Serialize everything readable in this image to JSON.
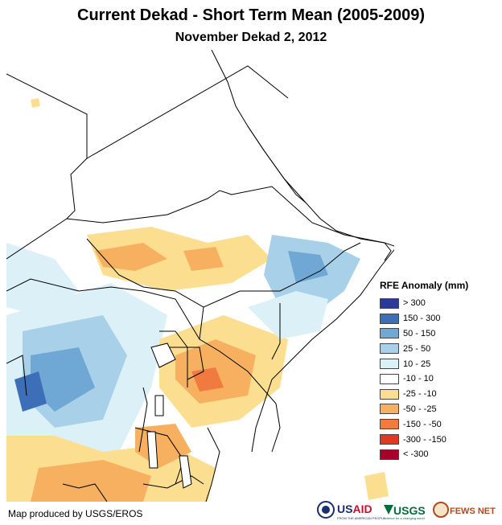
{
  "header": {
    "title": "Current Dekad - Short Term Mean (2005-2009)",
    "subtitle": "November Dekad 2, 2012"
  },
  "legend": {
    "title": "RFE Anomaly (mm)",
    "items": [
      {
        "label": "> 300",
        "color": "#2b3a9a"
      },
      {
        "label": "150 - 300",
        "color": "#3d6fb8"
      },
      {
        "label": "50 - 150",
        "color": "#6fa8d4"
      },
      {
        "label": "25 - 50",
        "color": "#a8d0e8"
      },
      {
        "label": "10 - 25",
        "color": "#dcf0f8"
      },
      {
        "label": "-10 - 10",
        "color": "#ffffff"
      },
      {
        "label": "-25 - -10",
        "color": "#fbde90"
      },
      {
        "label": "-50 - -25",
        "color": "#f7b060"
      },
      {
        "label": "-150 - -50",
        "color": "#f07a40"
      },
      {
        "label": "-300 - -150",
        "color": "#e03a20"
      },
      {
        "label": "< -300",
        "color": "#a8002a"
      }
    ]
  },
  "footer": {
    "credit": "Map produced by USGS/EROS",
    "logos": {
      "usaid": "USAID",
      "usaid_tagline": "FROM THE AMERICAN PEOPLE",
      "usgs": "USGS",
      "usgs_tagline": "science for a changing world",
      "fews": "FEWS NET"
    }
  }
}
